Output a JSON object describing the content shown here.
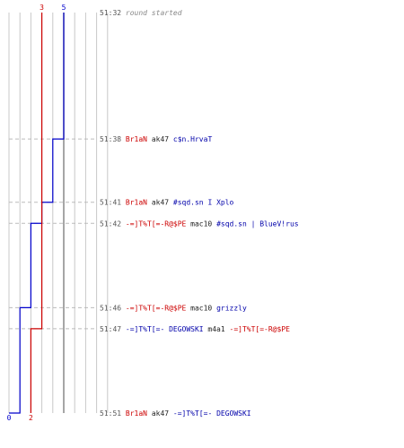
{
  "chart_data": {
    "type": "line",
    "title": "",
    "xlabel": "",
    "ylabel": "",
    "grid": true,
    "x_range": [
      0,
      9
    ],
    "y_range_seconds": [
      0,
      19
    ],
    "series": [
      {
        "team": "blue",
        "color": "#0000cc",
        "start_label": "5",
        "end_label": "0",
        "values": [
          5,
          4,
          3,
          2,
          1,
          0
        ],
        "change_times": [
          "51:38",
          "51:41",
          "51:42",
          "51:46",
          "51:51"
        ]
      },
      {
        "team": "red",
        "color": "#cc0000",
        "start_label": "3",
        "end_label": "2",
        "values": [
          3,
          2
        ],
        "change_times": [
          "51:47"
        ]
      }
    ],
    "events": [
      {
        "time": "51:32",
        "secs": 0,
        "type": "status",
        "text": "round started",
        "color": "#888888",
        "italic": true
      },
      {
        "time": "51:38",
        "secs": 6,
        "type": "kill",
        "killer": "Br1aN",
        "killer_color": "#cc0000",
        "weapon": "ak47",
        "victim": "c$n.HrvaT",
        "victim_color": "#0000aa"
      },
      {
        "time": "51:41",
        "secs": 9,
        "type": "kill",
        "killer": "Br1aN",
        "killer_color": "#cc0000",
        "weapon": "ak47",
        "victim": "#sqd.sn I Xplo",
        "victim_color": "#0000aa"
      },
      {
        "time": "51:42",
        "secs": 10,
        "type": "kill",
        "killer": "-=]T%T[=-R@$PE",
        "killer_color": "#cc0000",
        "weapon": "mac10",
        "victim": "#sqd.sn | BlueV!rus",
        "victim_color": "#0000aa"
      },
      {
        "time": "51:46",
        "secs": 14,
        "type": "kill",
        "killer": "-=]T%T[=-R@$PE",
        "killer_color": "#cc0000",
        "weapon": "mac10",
        "victim": "grizzly",
        "victim_color": "#0000aa"
      },
      {
        "time": "51:47",
        "secs": 15,
        "type": "kill",
        "killer": "-=]T%T[=- DEGOWSKI",
        "killer_color": "#0000aa",
        "weapon": "m4a1",
        "victim": "-=]T%T[=-R@$PE",
        "victim_color": "#cc0000"
      },
      {
        "time": "51:51",
        "secs": 19,
        "type": "kill",
        "killer": "Br1aN",
        "killer_color": "#cc0000",
        "weapon": "ak47",
        "victim": "-=]T%T[=- DEGOWSKI",
        "victim_color": "#0000aa"
      }
    ]
  }
}
